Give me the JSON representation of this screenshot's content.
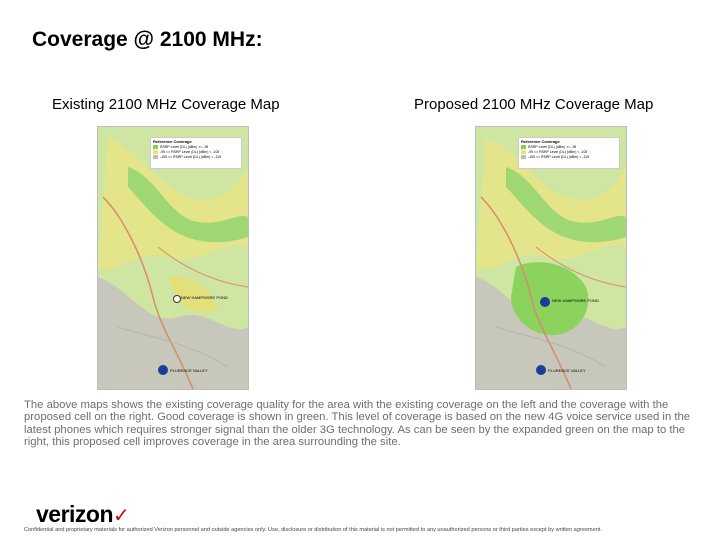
{
  "slide": {
    "title": "Coverage @ 2100 MHz:",
    "description": "The above maps shows the existing coverage quality for the area with the existing coverage on the left and the coverage with the proposed cell on the right. Good coverage is shown in green. This level of coverage is based on the new 4G voice service used in the latest phones which requires stronger signal than the older 3G technology. As can be seen by the expanded green on the map to the right, this proposed cell improves coverage in the area surrounding the site.",
    "logo_text": "verizon",
    "logo_mark": "✓",
    "footer": "Confidential and proprietary materials for authorized Verizon personnel and outside agencies only. Use, disclosure or distribution of this material is not permitted to any unauthorized persons or third parties except by written agreement."
  },
  "maps": {
    "existing": {
      "caption": "Existing 2100 MHz Coverage Map",
      "legend_title": "Reference Coverage",
      "legend": [
        "RSRP Level (DL) (dBm) >= -95",
        "-95 <= RSRP Level (DL) (dBm) < -105",
        "-105 <= RSRP Level (DL) (dBm) < -115"
      ],
      "site_label": "NEW HAMPSHIRE POND",
      "site2_label": "PLURENCE VALLEY"
    },
    "proposed": {
      "caption": "Proposed 2100 MHz Coverage Map",
      "legend_title": "Reference Coverage",
      "legend": [
        "RSRP Level (DL) (dBm) >= -95",
        "-95 <= RSRP Level (DL) (dBm) < -105",
        "-105 <= RSRP Level (DL) (dBm) < -115"
      ],
      "site_label": "NEW HAMPSHIRE POND",
      "site2_label": "PLURENCE VALLEY"
    }
  },
  "colors": {
    "good": "#7fd24f",
    "fair": "#e8e66a",
    "poor": "#bcbcbc",
    "site": "#1d3b9b",
    "road": "#d98a6b"
  }
}
